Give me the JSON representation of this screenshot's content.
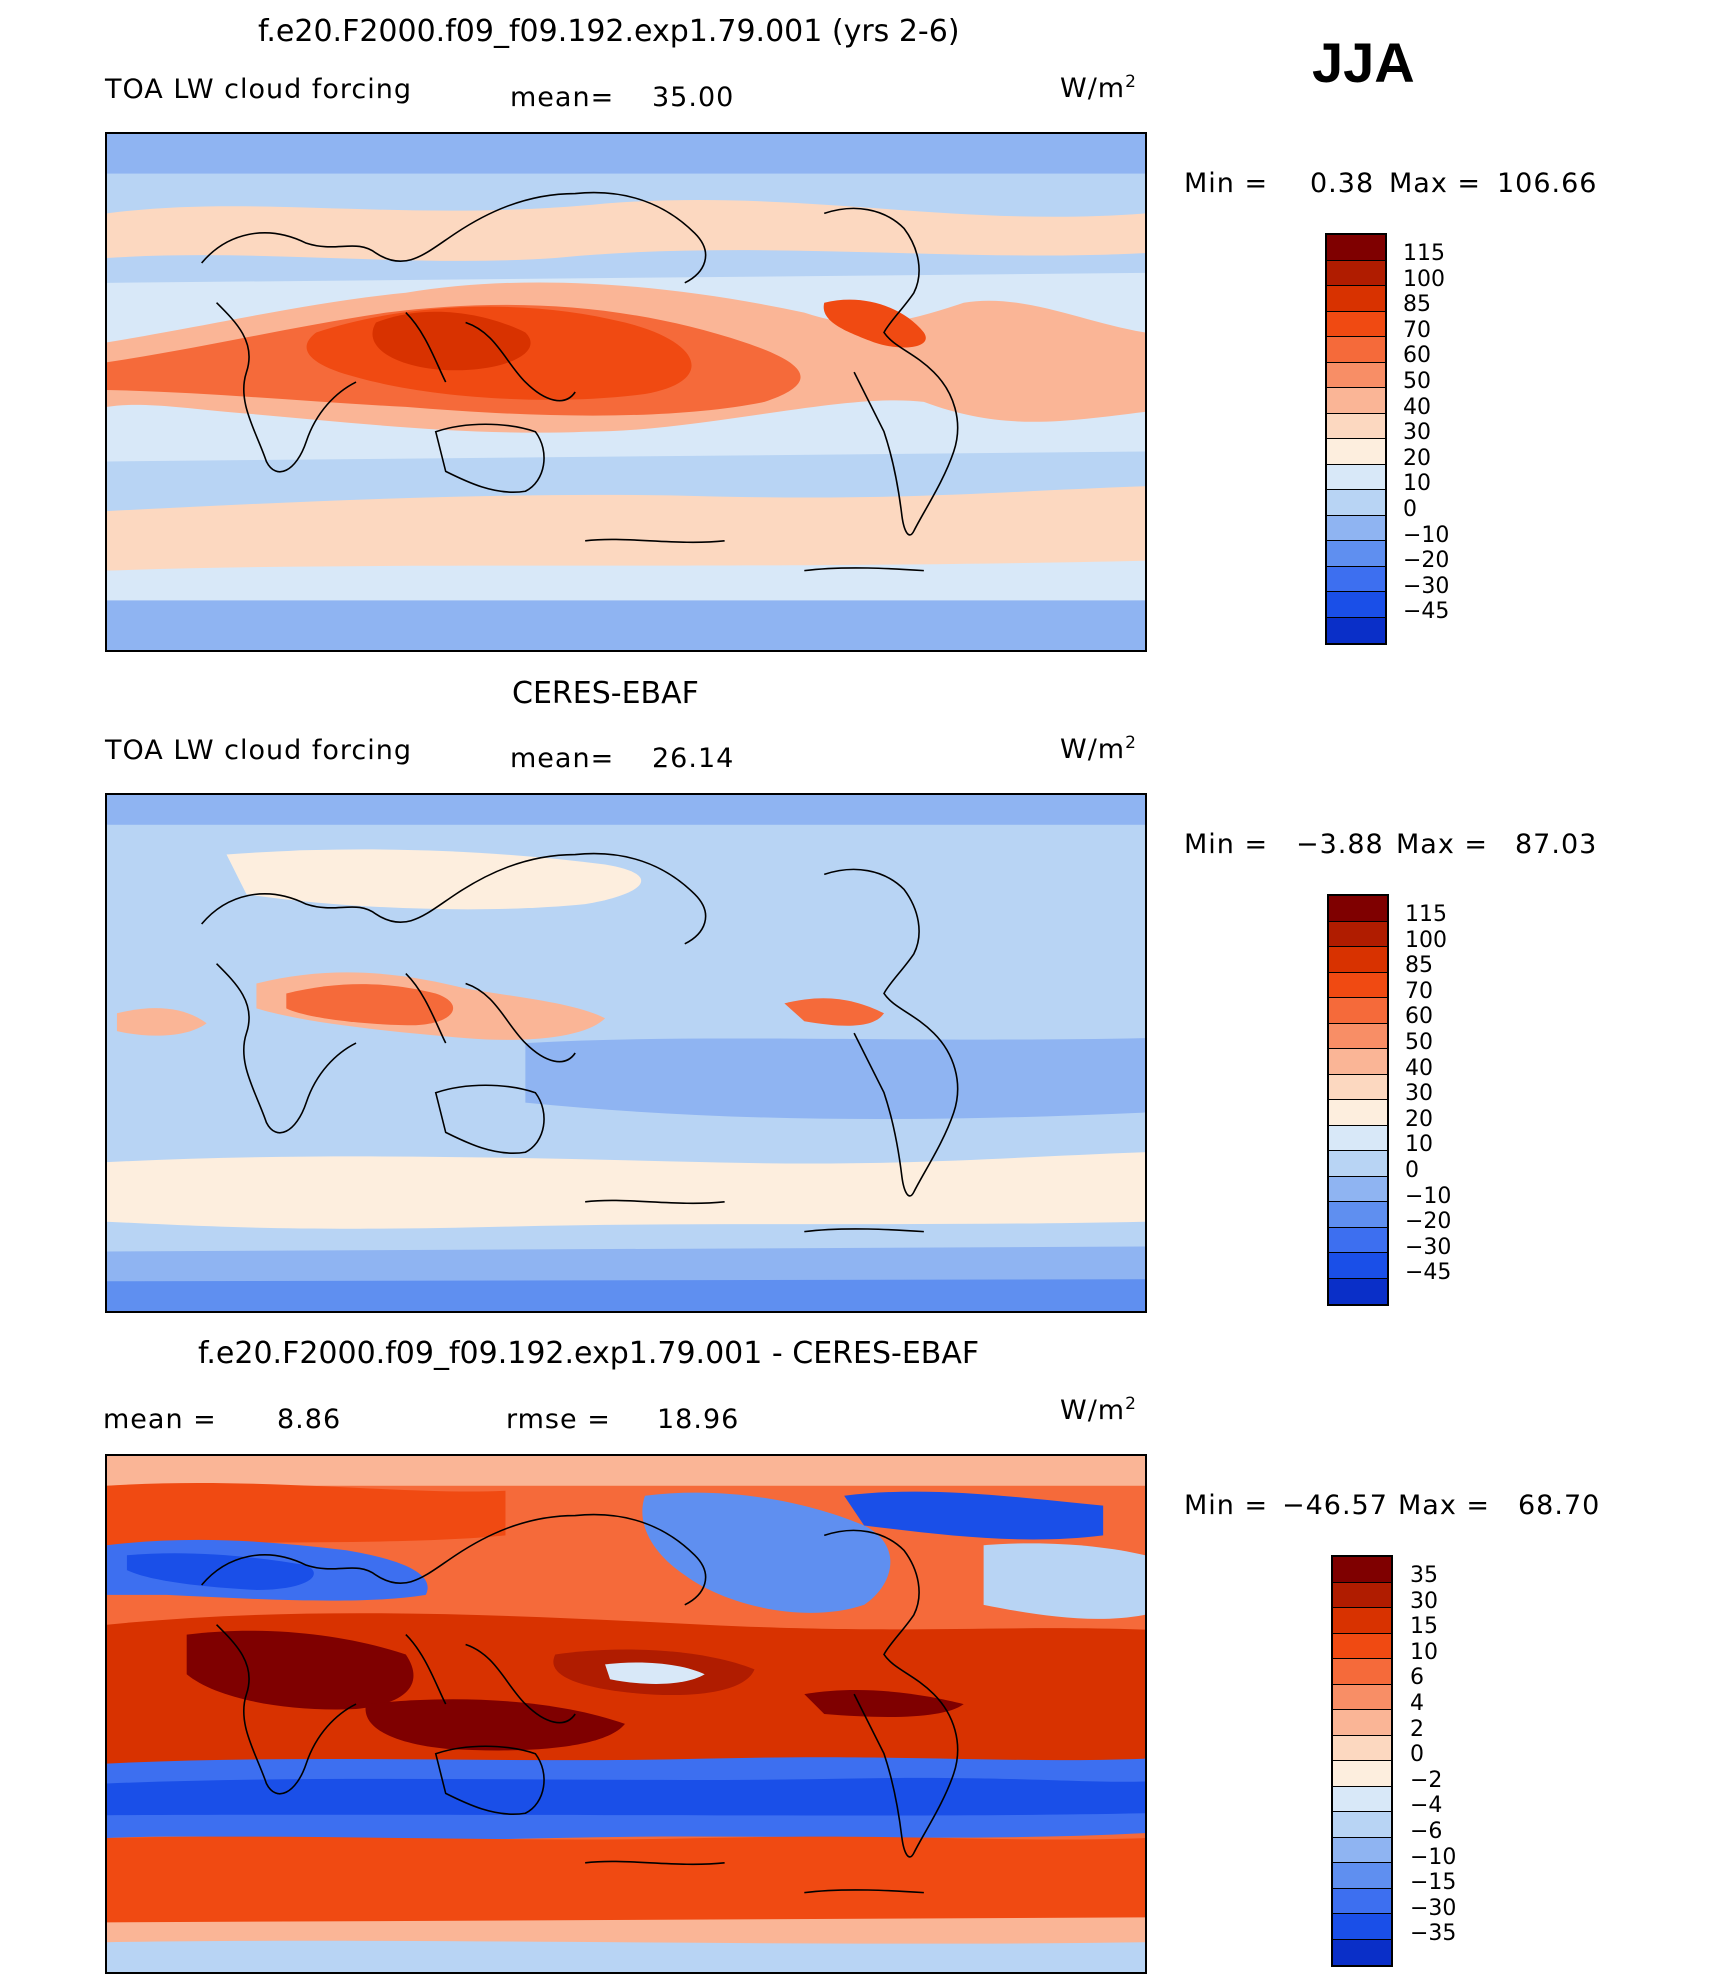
{
  "figure": {
    "season": "JJA",
    "units": "W/m",
    "units_sup": "2"
  },
  "panels": [
    {
      "title": "f.e20.F2000.f09_f09.192.exp1.79.001 (yrs 2-6)",
      "variable": "TOA LW cloud forcing",
      "mean_label": "mean=",
      "mean_value": "35.00",
      "min_label": "Min =",
      "min_value": "0.38",
      "max_label": "Max =",
      "max_value": "106.66",
      "colorbar_ticks": [
        "115",
        "100",
        "85",
        "70",
        "60",
        "50",
        "40",
        "30",
        "20",
        "10",
        "0",
        "−10",
        "−20",
        "−30",
        "−45"
      ],
      "colorbar_colors": [
        "#7f0000",
        "#b01c00",
        "#d83200",
        "#f04a12",
        "#f56a3a",
        "#f88e66",
        "#fab596",
        "#fcd8c0",
        "#fdeede",
        "#d8e8f8",
        "#b8d4f4",
        "#8fb4f2",
        "#5f8ff0",
        "#3d6ff0",
        "#1a4fe8",
        "#0a2fc8",
        "#061a9e",
        "#000a70"
      ]
    },
    {
      "title": "CERES-EBAF",
      "variable": "TOA LW cloud forcing",
      "mean_label": "mean=",
      "mean_value": "26.14",
      "min_label": "Min =",
      "min_value": "−3.88",
      "max_label": "Max =",
      "max_value": "87.03",
      "colorbar_ticks": [
        "115",
        "100",
        "85",
        "70",
        "60",
        "50",
        "40",
        "30",
        "20",
        "10",
        "0",
        "−10",
        "−20",
        "−30",
        "−45"
      ],
      "colorbar_colors": [
        "#7f0000",
        "#b01c00",
        "#d83200",
        "#f04a12",
        "#f56a3a",
        "#f88e66",
        "#fab596",
        "#fcd8c0",
        "#fdeede",
        "#d8e8f8",
        "#b8d4f4",
        "#8fb4f2",
        "#5f8ff0",
        "#3d6ff0",
        "#1a4fe8",
        "#0a2fc8",
        "#061a9e",
        "#000a70"
      ]
    },
    {
      "title": "f.e20.F2000.f09_f09.192.exp1.79.001 - CERES-EBAF",
      "mean_label": "mean =",
      "mean_value": "8.86",
      "rmse_label": "rmse =",
      "rmse_value": "18.96",
      "min_label": "Min =",
      "min_value": "−46.57",
      "max_label": "Max =",
      "max_value": "68.70",
      "colorbar_ticks": [
        "35",
        "30",
        "15",
        "10",
        "6",
        "4",
        "2",
        "0",
        "−2",
        "−4",
        "−6",
        "−10",
        "−15",
        "−30",
        "−35"
      ],
      "colorbar_colors": [
        "#7f0000",
        "#b01c00",
        "#d83200",
        "#f04a12",
        "#f56a3a",
        "#f88e66",
        "#fab596",
        "#fcd8c0",
        "#fdeede",
        "#d8e8f8",
        "#b8d4f4",
        "#8fb4f2",
        "#5f8ff0",
        "#3d6ff0",
        "#1a4fe8",
        "#0a2fc8",
        "#061a9e",
        "#000a70"
      ]
    }
  ]
}
